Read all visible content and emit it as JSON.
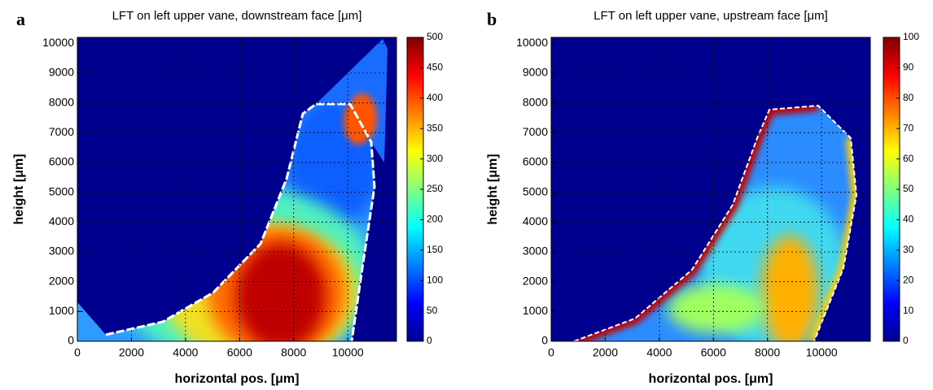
{
  "chart_data": [
    {
      "type": "heatmap",
      "panel_label": "a",
      "title": "LFT on left upper vane, downstream face [μm]",
      "xlabel": "horizontal pos. [μm]",
      "ylabel": "height [μm]",
      "xlim": [
        0,
        11800
      ],
      "ylim": [
        0,
        10200
      ],
      "xticks": [
        0,
        2000,
        4000,
        6000,
        8000,
        10000
      ],
      "yticks": [
        0,
        1000,
        2000,
        3000,
        4000,
        5000,
        6000,
        7000,
        8000,
        9000,
        10000
      ],
      "colormap": "jet",
      "grid": true,
      "colorbar": {
        "lim": [
          0,
          500
        ],
        "ticks": [
          0,
          50,
          100,
          150,
          200,
          250,
          300,
          350,
          400,
          450,
          500
        ]
      }
    },
    {
      "type": "heatmap",
      "panel_label": "b",
      "title": "LFT on left upper vane, upstream face [μm]",
      "xlabel": "horizontal pos. [μm]",
      "ylabel": "height [μm]",
      "xlim": [
        0,
        11800
      ],
      "ylim": [
        0,
        10200
      ],
      "xticks": [
        0,
        2000,
        4000,
        6000,
        8000,
        10000
      ],
      "yticks": [
        0,
        1000,
        2000,
        3000,
        4000,
        5000,
        6000,
        7000,
        8000,
        9000,
        10000
      ],
      "colormap": "jet",
      "grid": true,
      "colorbar": {
        "lim": [
          0,
          100
        ],
        "ticks": [
          0,
          10,
          20,
          30,
          40,
          50,
          60,
          70,
          80,
          90,
          100
        ]
      }
    }
  ]
}
